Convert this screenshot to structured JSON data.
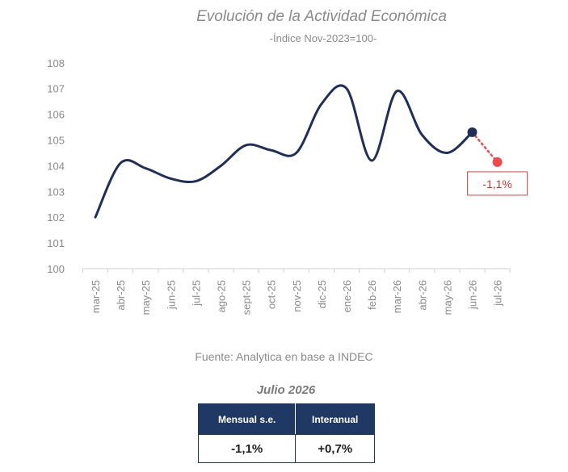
{
  "chart_data": {
    "type": "line",
    "title": "Evolución de la Actividad Económica",
    "subtitle": "-Índice Nov-2023=100-",
    "categories": [
      "mar-25",
      "abr-25",
      "may-25",
      "jun-25",
      "jul-25",
      "ago-25",
      "sept-25",
      "oct-25",
      "nov-25",
      "dic-25",
      "ene-26",
      "feb-26",
      "mar-26",
      "abr-26",
      "may-26",
      "jun-26",
      "jul-26"
    ],
    "series": [
      {
        "values": [
          102.0,
          104.1,
          103.9,
          103.5,
          103.4,
          104.0,
          104.8,
          104.6,
          104.5,
          106.4,
          107.0,
          104.2,
          106.9,
          105.2,
          104.5,
          105.3,
          null
        ],
        "color": "#1f2f5a"
      }
    ],
    "projection": {
      "from_category": "jun-26",
      "to_category": "jul-26",
      "from_value": 105.3,
      "to_value": 104.14,
      "color": "#f04a4a"
    },
    "annotation": "-1,1%",
    "ylim": [
      100,
      108
    ],
    "yticks": [
      100,
      101,
      102,
      103,
      104,
      105,
      106,
      107,
      108
    ],
    "grid": false,
    "xlabel": "",
    "ylabel": ""
  },
  "source_text": "Fuente: Analytica en base a INDEC",
  "summary": {
    "period": "Julio 2026",
    "headers": [
      "Mensual s.e.",
      "Interanual"
    ],
    "values": [
      "-1,1%",
      "+0,7%"
    ]
  }
}
